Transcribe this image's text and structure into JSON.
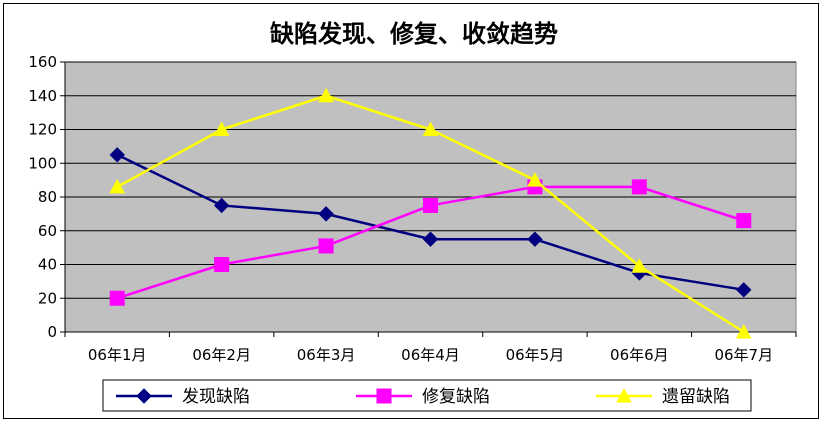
{
  "chart_data": {
    "type": "line",
    "title": "缺陷发现、修复、收敛趋势",
    "xlabel": "",
    "ylabel": "",
    "categories": [
      "06年1月",
      "06年2月",
      "06年3月",
      "06年4月",
      "06年5月",
      "06年6月",
      "06年7月"
    ],
    "ylim": [
      0,
      160
    ],
    "yticks": [
      0,
      20,
      40,
      60,
      80,
      100,
      120,
      140,
      160
    ],
    "grid": true,
    "plot_background": "#c0c0c0",
    "legend_position": "bottom",
    "series": [
      {
        "name": "发现缺陷",
        "values": [
          105,
          75,
          70,
          55,
          55,
          35,
          25
        ],
        "color": "#000080",
        "marker": "diamond"
      },
      {
        "name": "修复缺陷",
        "values": [
          20,
          40,
          51,
          75,
          86,
          86,
          66
        ],
        "color": "#ff00ff",
        "marker": "square"
      },
      {
        "name": "遗留缺陷",
        "values": [
          86,
          120,
          140,
          120,
          90,
          39,
          0
        ],
        "color": "#ffff00",
        "marker": "triangle"
      }
    ]
  }
}
